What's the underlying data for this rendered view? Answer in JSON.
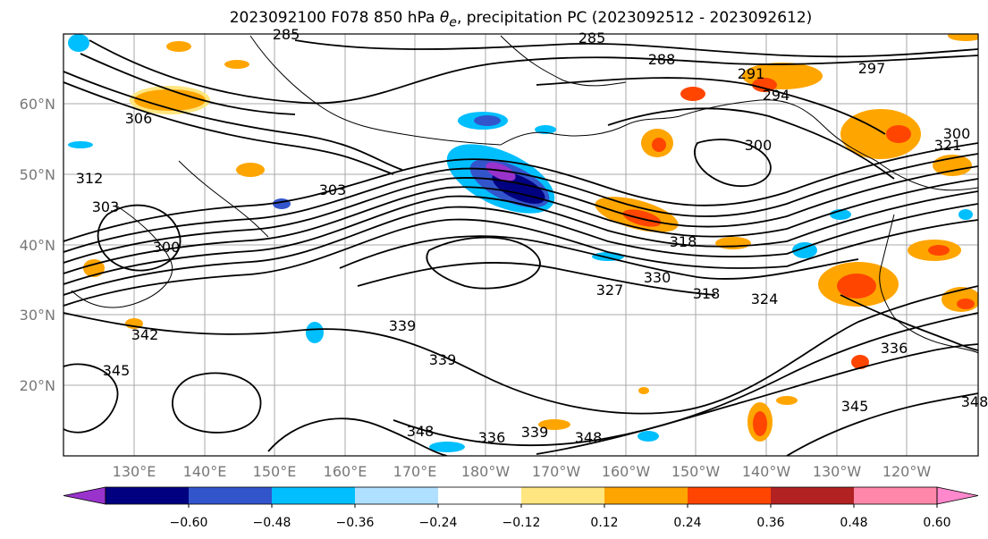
{
  "title_parts": {
    "prefix": "2023092100 F078 850 hPa ",
    "symbol": "θ",
    "subscript": "e",
    "suffix": ", precipitation PC (2023092512 - 2023092612)"
  },
  "map": {
    "lat_labels": [
      "60°N",
      "50°N",
      "40°N",
      "30°N",
      "20°N"
    ],
    "lon_labels": [
      "130°E",
      "140°E",
      "150°E",
      "160°E",
      "170°E",
      "180°W",
      "170°W",
      "160°W",
      "150°W",
      "140°W",
      "130°W",
      "120°W"
    ],
    "contour_labels": [
      "285",
      "285",
      "288",
      "291",
      "294",
      "297",
      "306",
      "300",
      "303",
      "303",
      "300",
      "318",
      "321",
      "327",
      "330",
      "318",
      "324",
      "342",
      "345",
      "339",
      "339",
      "348",
      "336",
      "339",
      "348",
      "336",
      "345",
      "348",
      "312",
      "300"
    ],
    "grid": true
  },
  "colorbar": {
    "tick_labels": [
      "−0.60",
      "−0.48",
      "−0.36",
      "−0.24",
      "−0.12",
      "0.12",
      "0.24",
      "0.36",
      "0.48",
      "0.60"
    ],
    "colors": [
      "#9933cc",
      "#000080",
      "#3355cc",
      "#00bfff",
      "#b0e0ff",
      "#ffffff",
      "#ffe680",
      "#ffa500",
      "#ff4500",
      "#b22222",
      "#ff88aa",
      "#ff88cc"
    ],
    "extend": "both"
  },
  "chart_data": {
    "type": "heatmap",
    "title": "2023092100 F078 850 hPa θe, precipitation PC (2023092512 - 2023092612)",
    "x_tick_labels": [
      "130°E",
      "140°E",
      "150°E",
      "160°E",
      "170°E",
      "180°W",
      "170°W",
      "160°W",
      "150°W",
      "140°W",
      "130°W",
      "120°W"
    ],
    "y_tick_labels": [
      "60°N",
      "50°N",
      "40°N",
      "30°N",
      "20°N"
    ],
    "colorbar_ticks": [
      -0.6,
      -0.48,
      -0.36,
      -0.24,
      -0.12,
      0.12,
      0.24,
      0.36,
      0.48,
      0.6
    ],
    "contour_field": "850 hPa theta-e (K)",
    "shaded_field": "precipitation PC",
    "grid": true
  }
}
